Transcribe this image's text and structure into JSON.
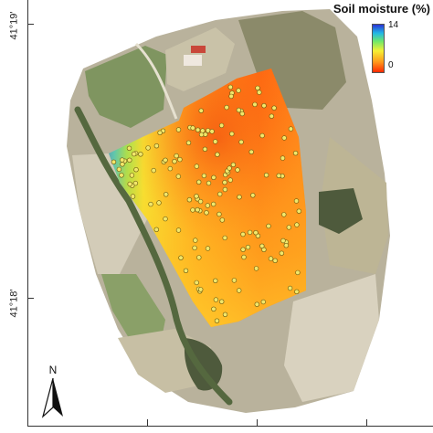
{
  "latitude_labels": {
    "top": "41°19'",
    "bottom": "41°18'"
  },
  "legend": {
    "title": "Soil moisture (%)",
    "max": "14",
    "min": "0",
    "colors": [
      "#2a34d6",
      "#22b8e6",
      "#6fe86a",
      "#f5f035",
      "#ff9b1c",
      "#ff2a00"
    ]
  },
  "north_arrow": {
    "label": "N"
  },
  "basemap_colors": {
    "background": "#ffffff",
    "orthophoto": "#b9b29c",
    "field_green": "#7f9560",
    "field_light": "#d3ccb8",
    "forest": "#4e5a3c",
    "river": "#55683f"
  },
  "sample_points": {
    "count": 150,
    "color": "#f2e76a"
  },
  "icons": {
    "north_arrow": "north-arrow-icon",
    "sample_point": "circle-marker-icon"
  }
}
